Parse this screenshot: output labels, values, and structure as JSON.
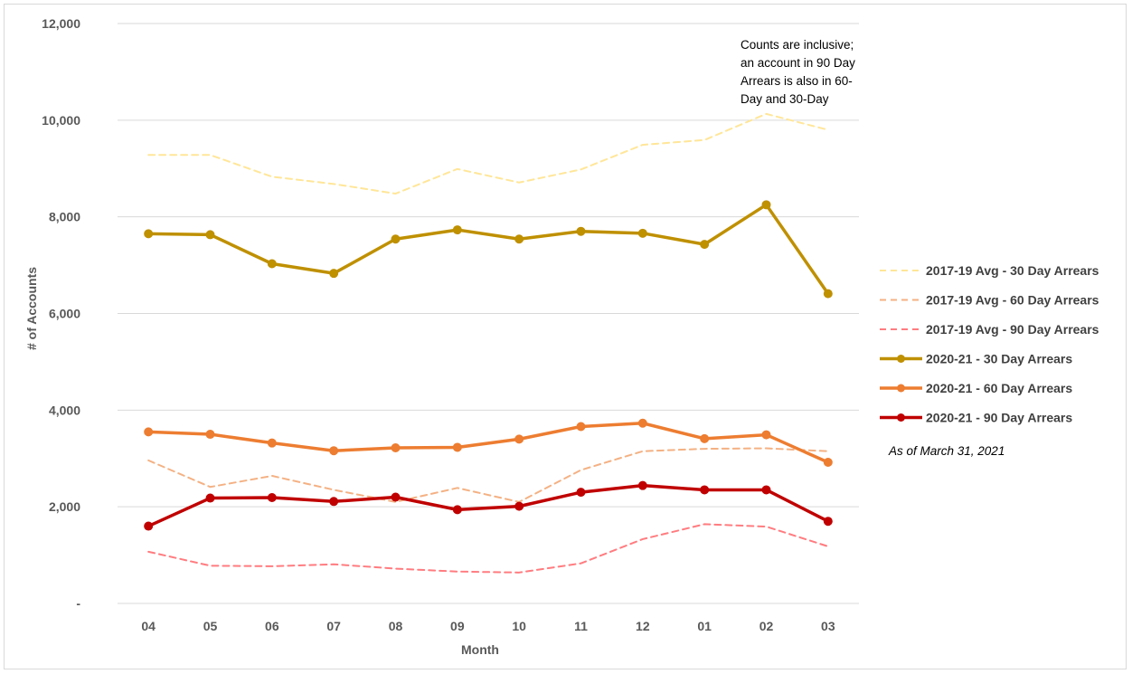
{
  "chart_data": {
    "type": "line",
    "categories": [
      "04",
      "05",
      "06",
      "07",
      "08",
      "09",
      "10",
      "11",
      "12",
      "01",
      "02",
      "03"
    ],
    "xlabel": "Month",
    "ylabel": "# of Accounts",
    "ylim": [
      0,
      12000
    ],
    "yticks": [
      0,
      2000,
      4000,
      6000,
      8000,
      10000,
      12000
    ],
    "ytick_labels": [
      "-",
      "2,000",
      "4,000",
      "6,000",
      "8,000",
      "10,000",
      "12,000"
    ],
    "grid": "horizontal",
    "legend_position": "right",
    "series": [
      {
        "name": "2017-19 Avg - 30 Day Arrears",
        "style": "dashed",
        "markers": false,
        "color": "#ffe699",
        "values": [
          9280,
          9280,
          8830,
          8680,
          8480,
          8990,
          8710,
          8980,
          9490,
          9590,
          10130,
          9800
        ]
      },
      {
        "name": "2017-19 Avg - 60 Day Arrears",
        "style": "dashed",
        "markers": false,
        "color": "#f4b183",
        "values": [
          2960,
          2410,
          2640,
          2350,
          2100,
          2390,
          2100,
          2760,
          3150,
          3200,
          3210,
          3150
        ]
      },
      {
        "name": "2017-19 Avg - 90 Day Arrears",
        "style": "dashed",
        "markers": false,
        "color": "#ff7c80",
        "values": [
          1070,
          780,
          770,
          810,
          720,
          660,
          640,
          830,
          1330,
          1640,
          1590,
          1180
        ]
      },
      {
        "name": "2020-21 - 30 Day Arrears",
        "style": "solid",
        "markers": true,
        "color": "#bf9000",
        "values": [
          7650,
          7630,
          7030,
          6830,
          7540,
          7730,
          7540,
          7700,
          7660,
          7430,
          8250,
          6410
        ]
      },
      {
        "name": "2020-21 - 60 Day Arrears",
        "style": "solid",
        "markers": true,
        "color": "#ed7d31",
        "values": [
          3550,
          3500,
          3320,
          3160,
          3220,
          3230,
          3400,
          3660,
          3730,
          3410,
          3490,
          2920
        ]
      },
      {
        "name": "2020-21 - 90 Day Arrears",
        "style": "solid",
        "markers": true,
        "color": "#c00000",
        "values": [
          1600,
          2180,
          2190,
          2110,
          2200,
          1940,
          2010,
          2300,
          2440,
          2350,
          2350,
          1700
        ]
      }
    ],
    "annotations": [
      "Counts are inclusive; an account in 90 Day Arrears is also in 60-Day and 30-Day",
      "As of March 31, 2021"
    ],
    "annotation_lines": [
      "Counts are inclusive;",
      "an account in 90 Day",
      "Arrears is also in 60-",
      "Day and 30-Day"
    ]
  }
}
